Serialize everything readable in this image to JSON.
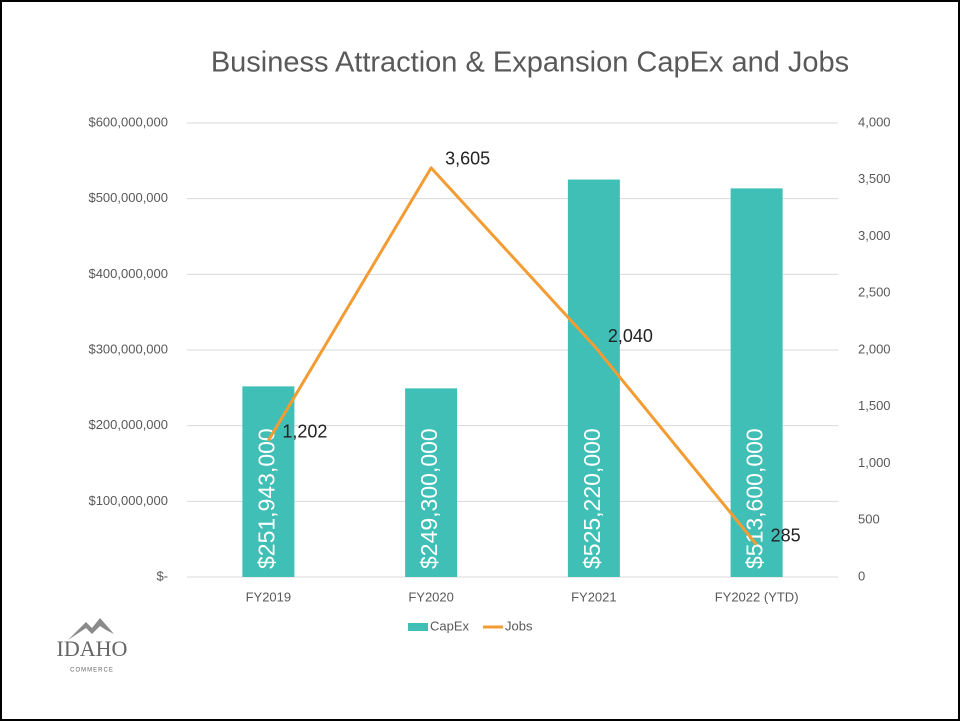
{
  "chart_data": {
    "type": "bar",
    "title": "Business Attraction & Expansion CapEx and Jobs",
    "categories": [
      "FY2019",
      "FY2020",
      "FY2021",
      "FY2022 (YTD)"
    ],
    "series": [
      {
        "name": "CapEx",
        "type": "bar",
        "color": "#3fbfb6",
        "values": [
          251943000,
          249300000,
          525220000,
          513600000
        ],
        "value_labels": [
          "$251,943,000",
          "$249,300,000",
          "$525,220,000",
          "$513,600,000"
        ]
      },
      {
        "name": "Jobs",
        "type": "line",
        "axis": "y2",
        "color": "#f39c33",
        "values": [
          1202,
          3605,
          2040,
          285
        ],
        "value_labels": [
          "1,202",
          "3,605",
          "2,040",
          "285"
        ]
      }
    ],
    "ylim": [
      0,
      600000000
    ],
    "yticks": [
      {
        "value": 0,
        "label": "$-"
      },
      {
        "value": 100000000,
        "label": "$100,000,000"
      },
      {
        "value": 200000000,
        "label": "$200,000,000"
      },
      {
        "value": 300000000,
        "label": "$300,000,000"
      },
      {
        "value": 400000000,
        "label": "$400,000,000"
      },
      {
        "value": 500000000,
        "label": "$500,000,000"
      },
      {
        "value": 600000000,
        "label": "$600,000,000"
      }
    ],
    "y2lim": [
      0,
      4000
    ],
    "y2ticks": [
      0,
      500,
      {
        "value": 1000,
        "label": "1,000"
      },
      {
        "value": 1500,
        "label": "1,500"
      },
      {
        "value": 2000,
        "label": "2,000"
      },
      {
        "value": 2500,
        "label": "2,500"
      },
      {
        "value": 3000,
        "label": "3,000"
      },
      {
        "value": 3500,
        "label": "3,500"
      },
      {
        "value": 4000,
        "label": "4,000"
      }
    ],
    "grid": true,
    "legend": "bottom"
  },
  "logo": {
    "name": "IDAHO",
    "tagline": "COMMERCE"
  }
}
